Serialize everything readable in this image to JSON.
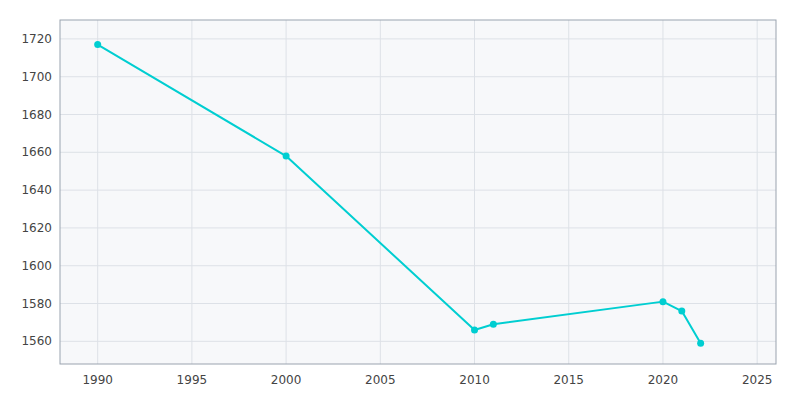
{
  "chart_data": {
    "type": "line",
    "x": [
      1990,
      2000,
      2010,
      2011,
      2020,
      2021,
      2022
    ],
    "values": [
      1717,
      1658,
      1566,
      1569,
      1581,
      1576,
      1559
    ],
    "color": "#00CED1",
    "marker": "circle",
    "xlim": [
      1988,
      2026
    ],
    "ylim": [
      1548,
      1730
    ],
    "xticks": [
      1990,
      1995,
      2000,
      2005,
      2010,
      2015,
      2020,
      2025
    ],
    "yticks": [
      1560,
      1580,
      1600,
      1620,
      1640,
      1660,
      1680,
      1700,
      1720
    ],
    "grid": true
  }
}
